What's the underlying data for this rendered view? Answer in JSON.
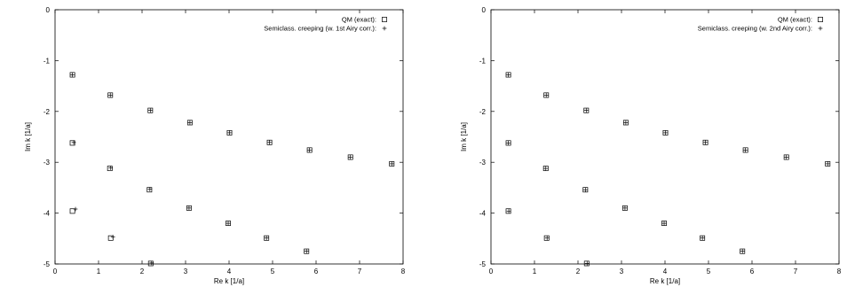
{
  "chart_data": [
    {
      "type": "scatter",
      "title": "",
      "xlabel": "Re k [1/a]",
      "ylabel": "Im k [1/a]",
      "xlim": [
        0,
        8
      ],
      "ylim": [
        -5,
        0
      ],
      "xticks": [
        "0",
        "1",
        "2",
        "3",
        "4",
        "5",
        "6",
        "7",
        "8"
      ],
      "yticks": [
        "0",
        "-1",
        "-2",
        "-3",
        "-4",
        "-5"
      ],
      "grid": false,
      "legend_position": "top-right",
      "series": [
        {
          "name": "QM (exact):",
          "marker": "square",
          "points": [
            [
              0.4,
              -1.28
            ],
            [
              1.27,
              -1.68
            ],
            [
              2.19,
              -1.98
            ],
            [
              3.1,
              -2.22
            ],
            [
              4.01,
              -2.42
            ],
            [
              4.93,
              -2.61
            ],
            [
              5.85,
              -2.76
            ],
            [
              6.79,
              -2.9
            ],
            [
              7.74,
              -3.03
            ],
            [
              0.4,
              -2.62
            ],
            [
              1.26,
              -3.12
            ],
            [
              2.17,
              -3.54
            ],
            [
              3.08,
              -3.9
            ],
            [
              3.98,
              -4.2
            ],
            [
              4.86,
              -4.49
            ],
            [
              5.78,
              -4.75
            ],
            [
              0.4,
              -3.96
            ],
            [
              1.28,
              -4.49
            ],
            [
              2.2,
              -4.99
            ]
          ]
        },
        {
          "name": "Semiclass. creeping (w. 1st Airy corr.):",
          "marker": "plus",
          "points": [
            [
              0.4,
              -1.28
            ],
            [
              1.27,
              -1.68
            ],
            [
              2.19,
              -1.98
            ],
            [
              3.1,
              -2.22
            ],
            [
              4.01,
              -2.42
            ],
            [
              4.93,
              -2.61
            ],
            [
              5.85,
              -2.76
            ],
            [
              6.79,
              -2.9
            ],
            [
              7.74,
              -3.03
            ],
            [
              0.43,
              -2.61
            ],
            [
              1.28,
              -3.11
            ],
            [
              2.18,
              -3.53
            ],
            [
              3.08,
              -3.9
            ],
            [
              3.98,
              -4.2
            ],
            [
              4.86,
              -4.49
            ],
            [
              5.78,
              -4.75
            ],
            [
              0.47,
              -3.92
            ],
            [
              1.33,
              -4.47
            ],
            [
              2.22,
              -4.98
            ]
          ]
        }
      ]
    },
    {
      "type": "scatter",
      "title": "",
      "xlabel": "Re k [1/a]",
      "ylabel": "Im k [1/a]",
      "xlim": [
        0,
        8
      ],
      "ylim": [
        -5,
        0
      ],
      "xticks": [
        "0",
        "1",
        "2",
        "3",
        "4",
        "5",
        "6",
        "7",
        "8"
      ],
      "yticks": [
        "0",
        "-1",
        "-2",
        "-3",
        "-4",
        "-5"
      ],
      "grid": false,
      "legend_position": "top-right",
      "series": [
        {
          "name": "QM (exact):",
          "marker": "square",
          "points": [
            [
              0.4,
              -1.28
            ],
            [
              1.27,
              -1.68
            ],
            [
              2.19,
              -1.98
            ],
            [
              3.1,
              -2.22
            ],
            [
              4.01,
              -2.42
            ],
            [
              4.93,
              -2.61
            ],
            [
              5.85,
              -2.76
            ],
            [
              6.79,
              -2.9
            ],
            [
              7.74,
              -3.03
            ],
            [
              0.4,
              -2.62
            ],
            [
              1.26,
              -3.12
            ],
            [
              2.17,
              -3.54
            ],
            [
              3.08,
              -3.9
            ],
            [
              3.98,
              -4.2
            ],
            [
              4.86,
              -4.49
            ],
            [
              5.78,
              -4.75
            ],
            [
              0.4,
              -3.96
            ],
            [
              1.28,
              -4.49
            ],
            [
              2.2,
              -4.99
            ]
          ]
        },
        {
          "name": "Semiclass. creeping (w. 2nd Airy corr.):",
          "marker": "plus",
          "points": [
            [
              0.4,
              -1.28
            ],
            [
              1.27,
              -1.68
            ],
            [
              2.19,
              -1.98
            ],
            [
              3.1,
              -2.22
            ],
            [
              4.01,
              -2.42
            ],
            [
              4.93,
              -2.61
            ],
            [
              5.85,
              -2.76
            ],
            [
              6.79,
              -2.9
            ],
            [
              7.74,
              -3.03
            ],
            [
              0.4,
              -2.62
            ],
            [
              1.26,
              -3.12
            ],
            [
              2.17,
              -3.54
            ],
            [
              3.08,
              -3.9
            ],
            [
              3.98,
              -4.2
            ],
            [
              4.86,
              -4.49
            ],
            [
              5.78,
              -4.75
            ],
            [
              0.41,
              -3.96
            ],
            [
              1.29,
              -4.49
            ],
            [
              2.21,
              -4.99
            ]
          ]
        }
      ]
    }
  ]
}
